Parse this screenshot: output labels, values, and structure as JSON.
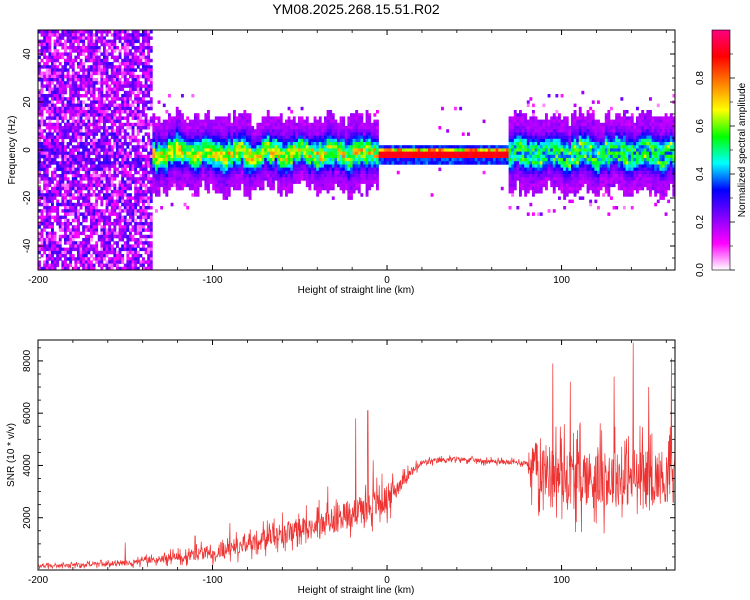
{
  "title": "YM08.2025.268.15.51.R02",
  "chart_data": [
    {
      "type": "heatmap",
      "name": "spectrogram",
      "xlabel": "Height of straight line (km)",
      "ylabel": "Frequency (Hz)",
      "xlim": [
        -200,
        165
      ],
      "ylim": [
        -50,
        50
      ],
      "xticks": [
        -200,
        -100,
        0,
        100
      ],
      "yticks": [
        -40,
        -20,
        0,
        20,
        40
      ],
      "xtick_labels": [
        "-200",
        "-100",
        "0",
        "100"
      ],
      "ytick_labels": [
        "-40",
        "-20",
        "0",
        "20",
        "40"
      ],
      "signal_band": {
        "center_hz": -1.5,
        "strong_from_km": -5,
        "strong_to_km": 70,
        "noise_until_km": -135
      },
      "colorbar": {
        "label": "Normalized spectral amplitude",
        "range": [
          0,
          1
        ],
        "ticks": [
          0.0,
          0.2,
          0.4,
          0.6,
          0.8
        ],
        "tick_labels": [
          "0.0",
          "0.2",
          "0.4",
          "0.6",
          "0.8"
        ],
        "colors": [
          "#ffffff",
          "#ff00ff",
          "#8000ff",
          "#0000ff",
          "#00ffff",
          "#00ff00",
          "#ffff00",
          "#ff8000",
          "#ff0000",
          "#ff0080"
        ]
      }
    },
    {
      "type": "line",
      "name": "snr",
      "xlabel": "Height of straight line (km)",
      "ylabel": "SNR (10 * v/v)",
      "xlim": [
        -200,
        165
      ],
      "ylim": [
        0,
        8800
      ],
      "xticks": [
        -200,
        -100,
        0,
        100
      ],
      "yticks": [
        2000,
        4000,
        6000,
        8000
      ],
      "xtick_labels": [
        "-200",
        "-100",
        "0",
        "100"
      ],
      "ytick_labels": [
        "2000",
        "4000",
        "6000",
        "8000"
      ],
      "color": "#ee3333",
      "envelope": {
        "x": [
          -200,
          -150,
          -120,
          -100,
          -80,
          -60,
          -40,
          -20,
          0,
          10,
          20,
          30,
          40,
          60,
          80,
          83,
          100,
          120,
          140,
          165
        ],
        "mean": [
          150,
          250,
          500,
          700,
          1000,
          1400,
          1700,
          2200,
          2700,
          3500,
          4100,
          4200,
          4250,
          4150,
          4100,
          4000,
          3600,
          3500,
          3500,
          3600
        ],
        "noise": [
          100,
          150,
          300,
          450,
          550,
          650,
          800,
          1000,
          900,
          350,
          200,
          150,
          130,
          150,
          150,
          1600,
          1800,
          1800,
          1800,
          1700
        ]
      },
      "peaks": [
        {
          "x": -150,
          "y": 1050
        },
        {
          "x": -110,
          "y": 1300
        },
        {
          "x": -90,
          "y": 1800
        },
        {
          "x": -60,
          "y": 2200
        },
        {
          "x": -34,
          "y": 3200
        },
        {
          "x": -18,
          "y": 5800
        },
        {
          "x": -11,
          "y": 6100
        },
        {
          "x": -8,
          "y": 4200
        },
        {
          "x": 12,
          "y": 4000
        },
        {
          "x": 95,
          "y": 7900
        },
        {
          "x": 105,
          "y": 7200
        },
        {
          "x": 130,
          "y": 7400
        },
        {
          "x": 141,
          "y": 8700
        },
        {
          "x": 150,
          "y": 7000
        },
        {
          "x": 163,
          "y": 8100
        }
      ]
    }
  ]
}
